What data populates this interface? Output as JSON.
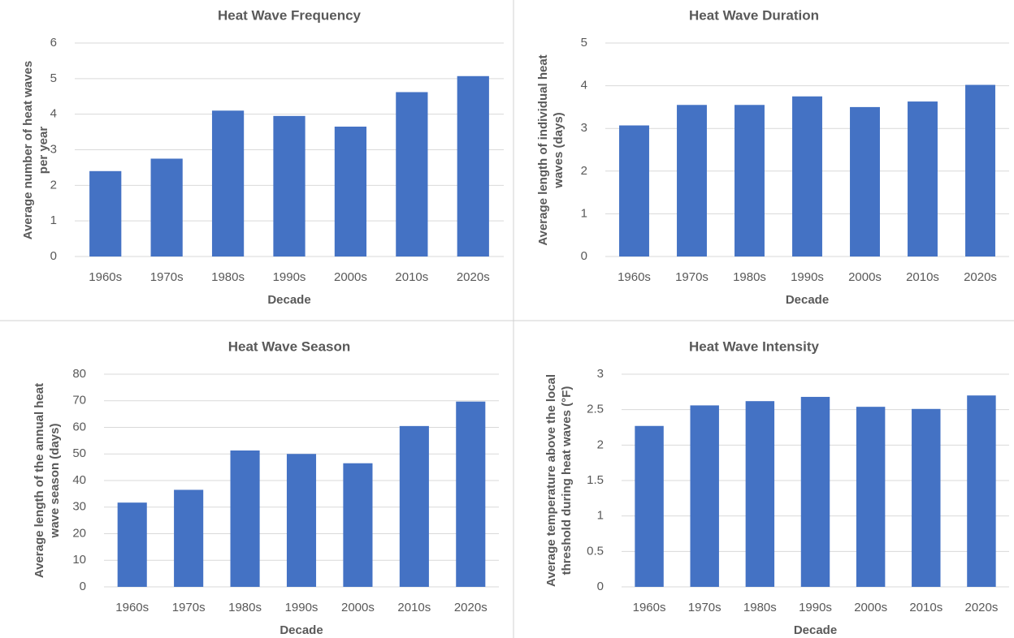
{
  "chart_data": [
    {
      "type": "bar",
      "title": "Heat Wave Frequency",
      "x_label": "Decade",
      "y_label": "Average number of heat waves per year",
      "categories": [
        "1960s",
        "1970s",
        "1980s",
        "1990s",
        "2000s",
        "2010s",
        "2020s"
      ],
      "values": [
        2.4,
        2.75,
        4.1,
        3.95,
        3.65,
        4.62,
        5.07
      ],
      "color": "#4472c4",
      "ylim": [
        0,
        6
      ],
      "yticks": [
        0,
        1,
        2,
        3,
        4,
        5,
        6
      ],
      "grid": true
    },
    {
      "type": "bar",
      "title": "Heat Wave Duration",
      "x_label": "Decade",
      "y_label": "Average length of individual heat waves (days)",
      "categories": [
        "1960s",
        "1970s",
        "1980s",
        "1990s",
        "2000s",
        "2010s",
        "2020s"
      ],
      "values": [
        3.07,
        3.55,
        3.55,
        3.75,
        3.5,
        3.63,
        4.02
      ],
      "color": "#4472c4",
      "ylim": [
        0,
        5
      ],
      "yticks": [
        0,
        1,
        2,
        3,
        4,
        5
      ],
      "grid": true
    },
    {
      "type": "bar",
      "title": "Heat Wave Season",
      "x_label": "Decade",
      "y_label": "Average length of the annual heat wave season (days)",
      "categories": [
        "1960s",
        "1970s",
        "1980s",
        "1990s",
        "2000s",
        "2010s",
        "2020s"
      ],
      "values": [
        31.7,
        36.5,
        51.3,
        50,
        46.5,
        60.5,
        69.7
      ],
      "color": "#4472c4",
      "ylim": [
        0,
        80
      ],
      "yticks": [
        0,
        10,
        20,
        30,
        40,
        50,
        60,
        70,
        80
      ],
      "grid": true
    },
    {
      "type": "bar",
      "title": "Heat Wave Intensity",
      "x_label": "Decade",
      "y_label": "Average temperature above the local threshold during heat waves (°F)",
      "categories": [
        "1960s",
        "1970s",
        "1980s",
        "1990s",
        "2000s",
        "2010s",
        "2020s"
      ],
      "values": [
        2.27,
        2.56,
        2.62,
        2.68,
        2.54,
        2.51,
        2.7
      ],
      "color": "#4472c4",
      "ylim": [
        0,
        3
      ],
      "yticks": [
        0,
        0.5,
        1,
        1.5,
        2,
        2.5,
        3
      ],
      "grid": true
    }
  ]
}
